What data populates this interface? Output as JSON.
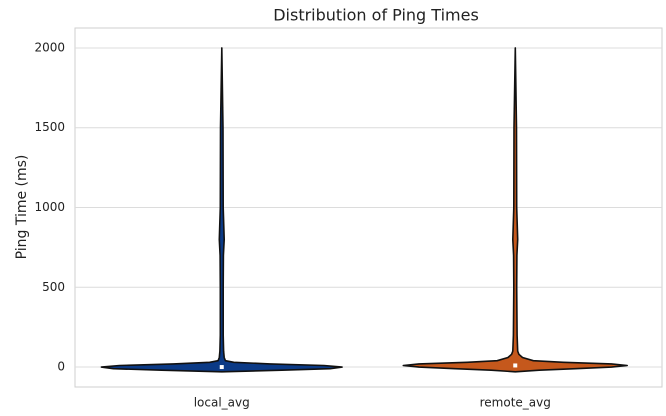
{
  "chart_data": {
    "type": "violin",
    "title": "Distribution of Ping Times",
    "y_label": "Ping Time (ms)",
    "categories": [
      "local_avg",
      "remote_avg"
    ],
    "series": [
      {
        "color": "#0b3a86",
        "y": [
          -30,
          -20,
          -10,
          0,
          10,
          20,
          30,
          40,
          60,
          100,
          200,
          500,
          700,
          800,
          1000,
          1500,
          2000
        ],
        "density": [
          0,
          0.5,
          0.9,
          1.0,
          0.85,
          0.4,
          0.1,
          0.03,
          0.02,
          0.015,
          0.012,
          0.012,
          0.014,
          0.02,
          0.012,
          0.01,
          0
        ],
        "median": 0
      },
      {
        "color": "#c5581c",
        "y": [
          -30,
          -20,
          -10,
          0,
          10,
          20,
          30,
          40,
          60,
          80,
          100,
          200,
          500,
          700,
          800,
          1000,
          1500,
          2000
        ],
        "density": [
          0,
          0.2,
          0.5,
          0.8,
          0.93,
          0.8,
          0.4,
          0.15,
          0.06,
          0.03,
          0.02,
          0.015,
          0.012,
          0.014,
          0.02,
          0.012,
          0.01,
          0
        ],
        "median": 10
      }
    ],
    "ylim": [
      -125,
      2125
    ],
    "yticks": [
      0,
      500,
      1000,
      1500,
      2000
    ],
    "grid": true
  }
}
